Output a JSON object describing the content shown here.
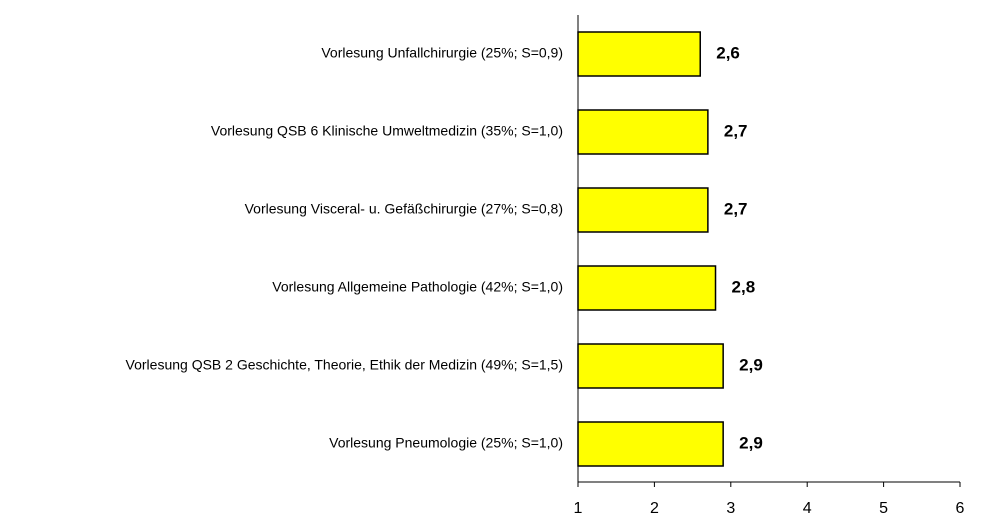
{
  "chart_data": {
    "type": "hbar",
    "categories": [
      "Vorlesung Unfallchirurgie (25%; S=0,9)",
      "Vorlesung QSB 6 Klinische Umweltmedizin (35%; S=1,0)",
      "Vorlesung Visceral- u. Gefäßchirurgie (27%; S=0,8)",
      "Vorlesung Allgemeine Pathologie (42%; S=1,0)",
      "Vorlesung QSB 2 Geschichte, Theorie, Ethik der Medizin (49%; S=1,5)",
      "Vorlesung Pneumologie (25%; S=1,0)"
    ],
    "values": [
      2.6,
      2.7,
      2.7,
      2.8,
      2.9,
      2.9
    ],
    "value_labels": [
      "2,6",
      "2,7",
      "2,7",
      "2,8",
      "2,9",
      "2,9"
    ],
    "color": "#ffff00",
    "xlim": [
      1,
      6
    ],
    "xticks": [
      1,
      2,
      3,
      4,
      5,
      6
    ],
    "grid": false
  }
}
